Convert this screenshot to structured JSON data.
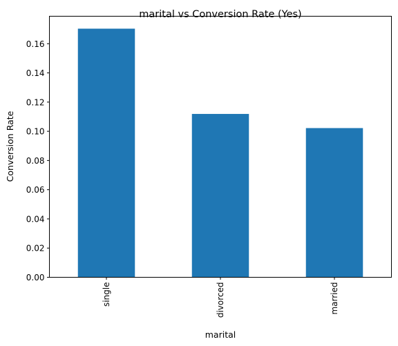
{
  "chart_data": {
    "type": "bar",
    "title": "marital vs Conversion Rate (Yes)",
    "xlabel": "marital",
    "ylabel": "Conversion Rate",
    "categories": [
      "single",
      "divorced",
      "married"
    ],
    "values": [
      0.1703,
      0.1119,
      0.1022
    ],
    "ylim": [
      0,
      0.17882
    ],
    "yticks": [
      0.0,
      0.02,
      0.04,
      0.06,
      0.08,
      0.1,
      0.12,
      0.14,
      0.16
    ],
    "ytick_labels": [
      "0.00",
      "0.02",
      "0.04",
      "0.06",
      "0.08",
      "0.10",
      "0.12",
      "0.14",
      "0.16"
    ],
    "bar_color": "#1f77b4",
    "grid": false,
    "legend": "none"
  }
}
